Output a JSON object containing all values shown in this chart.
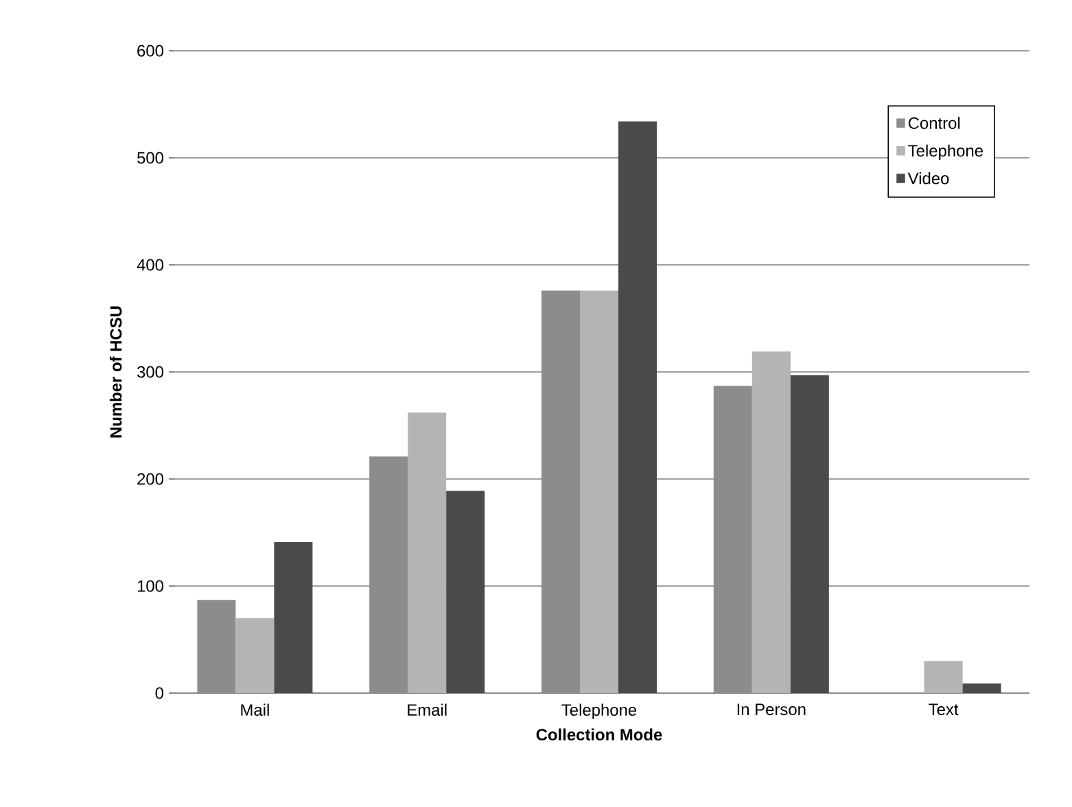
{
  "chart_data": {
    "type": "bar",
    "xlabel": "Collection Mode",
    "ylabel": "Number of HCSU",
    "categories": [
      "Mail",
      "Email",
      "Telephone",
      "In Person",
      "Text"
    ],
    "series": [
      {
        "name": "Control",
        "color": "#8c8c8c",
        "values": [
          87,
          221,
          376,
          287,
          0
        ]
      },
      {
        "name": "Telephone",
        "color": "#b4b4b4",
        "values": [
          70,
          262,
          376,
          319,
          30
        ]
      },
      {
        "name": "Video",
        "color": "#4a4a4a",
        "values": [
          141,
          189,
          534,
          297,
          9
        ]
      }
    ],
    "ylim": [
      0,
      600
    ],
    "yticks": [
      0,
      100,
      200,
      300,
      400,
      500,
      600
    ],
    "grid": "y",
    "legend": "top right"
  }
}
